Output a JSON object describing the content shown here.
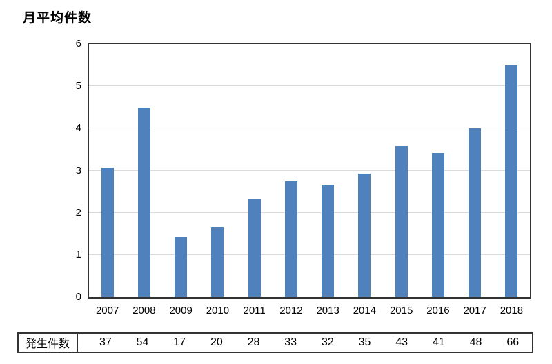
{
  "title": "月平均件数",
  "colors": {
    "bar": "#4F81BD",
    "grid": "#DADADA",
    "axis": "#333333",
    "text": "#000000"
  },
  "chart_data": {
    "type": "bar",
    "title": "月平均件数",
    "xlabel": "",
    "ylabel": "月平均件数",
    "categories": [
      "2007",
      "2008",
      "2009",
      "2010",
      "2011",
      "2012",
      "2013",
      "2014",
      "2015",
      "2016",
      "2017",
      "2018"
    ],
    "values": [
      3.08,
      4.5,
      1.42,
      1.67,
      2.33,
      2.75,
      2.67,
      2.92,
      3.58,
      3.42,
      4.0,
      5.5
    ],
    "ylim": [
      0,
      6
    ],
    "yticks": [
      0,
      1,
      2,
      3,
      4,
      5,
      6
    ],
    "grid": true,
    "legend": false,
    "bar_color": "#4F81BD",
    "table_row": {
      "label": "発生件数",
      "values": [
        37,
        54,
        17,
        20,
        28,
        33,
        32,
        35,
        43,
        41,
        48,
        66
      ]
    }
  },
  "table": {
    "row_label": "発生件数",
    "values": [
      "37",
      "54",
      "17",
      "20",
      "28",
      "33",
      "32",
      "35",
      "43",
      "41",
      "48",
      "66"
    ]
  }
}
